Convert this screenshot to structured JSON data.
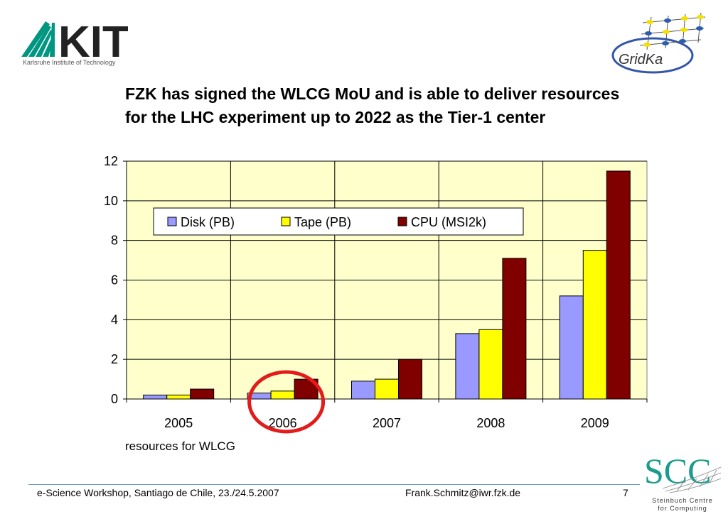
{
  "header": {
    "kit_logo_text": "KIT",
    "kit_subtitle": "Karlsruhe Institute of Technology",
    "gridka_logo_text": "GridKa"
  },
  "slide": {
    "title": "FZK has signed the WLCG MoU and is able to deliver resources for the LHC experiment up to 2022 as the Tier-1 center"
  },
  "chart_data": {
    "type": "bar",
    "categories": [
      "2005",
      "2006",
      "2007",
      "2008",
      "2009"
    ],
    "series": [
      {
        "name": "Disk (PB)",
        "values": [
          0.2,
          0.3,
          0.9,
          3.3,
          5.2
        ],
        "color": "#9999ff"
      },
      {
        "name": "Tape (PB)",
        "values": [
          0.2,
          0.4,
          1.0,
          3.5,
          7.5
        ],
        "color": "#ffff00"
      },
      {
        "name": "CPU (MSI2k)",
        "values": [
          0.5,
          1.0,
          2.0,
          7.1,
          11.5
        ],
        "color": "#800000"
      }
    ],
    "ylim": [
      0,
      12
    ],
    "yticks": [
      0,
      2,
      4,
      6,
      8,
      10,
      12
    ],
    "xlabel": "resources for WLCG",
    "ylabel": "",
    "grid": true,
    "legend": "top",
    "plot_background": "#ffffcc",
    "annotation": {
      "type": "red-ellipse",
      "category": "2006",
      "color": "#e31b1b"
    }
  },
  "footer": {
    "event": "e-Science Workshop, Santiago de Chile, 23./24.5.2007",
    "email": "Frank.Schmitz@iwr.fzk.de",
    "page": "7",
    "scc_logo_text": "SCC",
    "scc_subtitle_1": "Steinbuch Centre",
    "scc_subtitle_2": "for Computing"
  }
}
